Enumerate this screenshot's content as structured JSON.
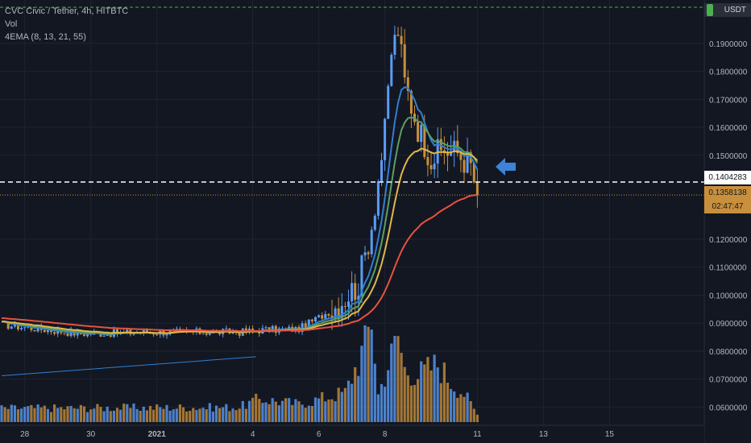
{
  "legend": {
    "symbol": "CVC Civic / Tether, 4h, HITBTC",
    "volume": "Vol",
    "ema": "4EMA (8, 13, 21, 55)"
  },
  "currency_label": "USDT",
  "price_tags": {
    "level": "0.1404283",
    "last": "0.1358138",
    "countdown": "02:47:47"
  },
  "colors": {
    "background": "#131722",
    "grid": "#1f2430",
    "up": "#5b9cf6",
    "down": "#c88f3c",
    "ema8": "#2f7fd2",
    "ema13": "#5c9f62",
    "ema21": "#e1b84a",
    "ema55": "#e8523f",
    "level": "#ffffff",
    "top_line": "#4caf50",
    "arrow": "#3d83d6"
  },
  "chart_data": {
    "type": "candlestick",
    "title": "CVC Civic / Tether, 4h, HITBTC",
    "y_ticks": [
      "0.1900000",
      "0.1800000",
      "0.1700000",
      "0.1600000",
      "0.1500000",
      "0.1200000",
      "0.1100000",
      "0.1000000",
      "0.0900000",
      "0.0800000",
      "0.0700000",
      "0.0600000"
    ],
    "x_ticks": [
      "28",
      "30",
      "2021",
      "4",
      "6",
      "8",
      "11",
      "13",
      "15"
    ],
    "ylim": [
      0.0535,
      0.2055
    ],
    "level_line": 0.1404283,
    "last_price": 0.1358138,
    "price_anchors": [
      {
        "bar": 0,
        "price": 0.0895
      },
      {
        "bar": 24,
        "price": 0.0862
      },
      {
        "bar": 48,
        "price": 0.0868
      },
      {
        "bar": 72,
        "price": 0.0868
      },
      {
        "bar": 78,
        "price": 0.0875
      },
      {
        "bar": 90,
        "price": 0.0879
      },
      {
        "bar": 100,
        "price": 0.0948
      },
      {
        "bar": 108,
        "price": 0.104
      },
      {
        "bar": 112,
        "price": 0.125
      },
      {
        "bar": 116,
        "price": 0.158
      },
      {
        "bar": 118,
        "price": 0.187
      },
      {
        "bar": 120,
        "price": 0.195
      },
      {
        "bar": 122,
        "price": 0.176
      },
      {
        "bar": 126,
        "price": 0.16
      },
      {
        "bar": 130,
        "price": 0.149
      },
      {
        "bar": 134,
        "price": 0.152
      },
      {
        "bar": 138,
        "price": 0.151
      },
      {
        "bar": 142,
        "price": 0.146
      },
      {
        "bar": 144,
        "price": 0.1358
      }
    ],
    "volume_anchors": [
      {
        "bar": 0,
        "v": 0.13
      },
      {
        "bar": 72,
        "v": 0.14
      },
      {
        "bar": 78,
        "v": 0.22
      },
      {
        "bar": 90,
        "v": 0.17
      },
      {
        "bar": 104,
        "v": 0.28
      },
      {
        "bar": 110,
        "v": 0.73
      },
      {
        "bar": 112,
        "v": 1.0
      },
      {
        "bar": 114,
        "v": 0.26
      },
      {
        "bar": 120,
        "v": 0.82
      },
      {
        "bar": 122,
        "v": 0.5
      },
      {
        "bar": 126,
        "v": 0.45
      },
      {
        "bar": 132,
        "v": 0.55
      },
      {
        "bar": 136,
        "v": 0.38
      },
      {
        "bar": 140,
        "v": 0.27
      },
      {
        "bar": 144,
        "v": 0.07
      }
    ],
    "ema_periods": [
      8,
      13,
      21,
      55
    ],
    "trendline": {
      "from": {
        "bar": 0,
        "price": 0.0712
      },
      "to": {
        "bar": 77,
        "price": 0.078
      }
    },
    "grid": true
  }
}
